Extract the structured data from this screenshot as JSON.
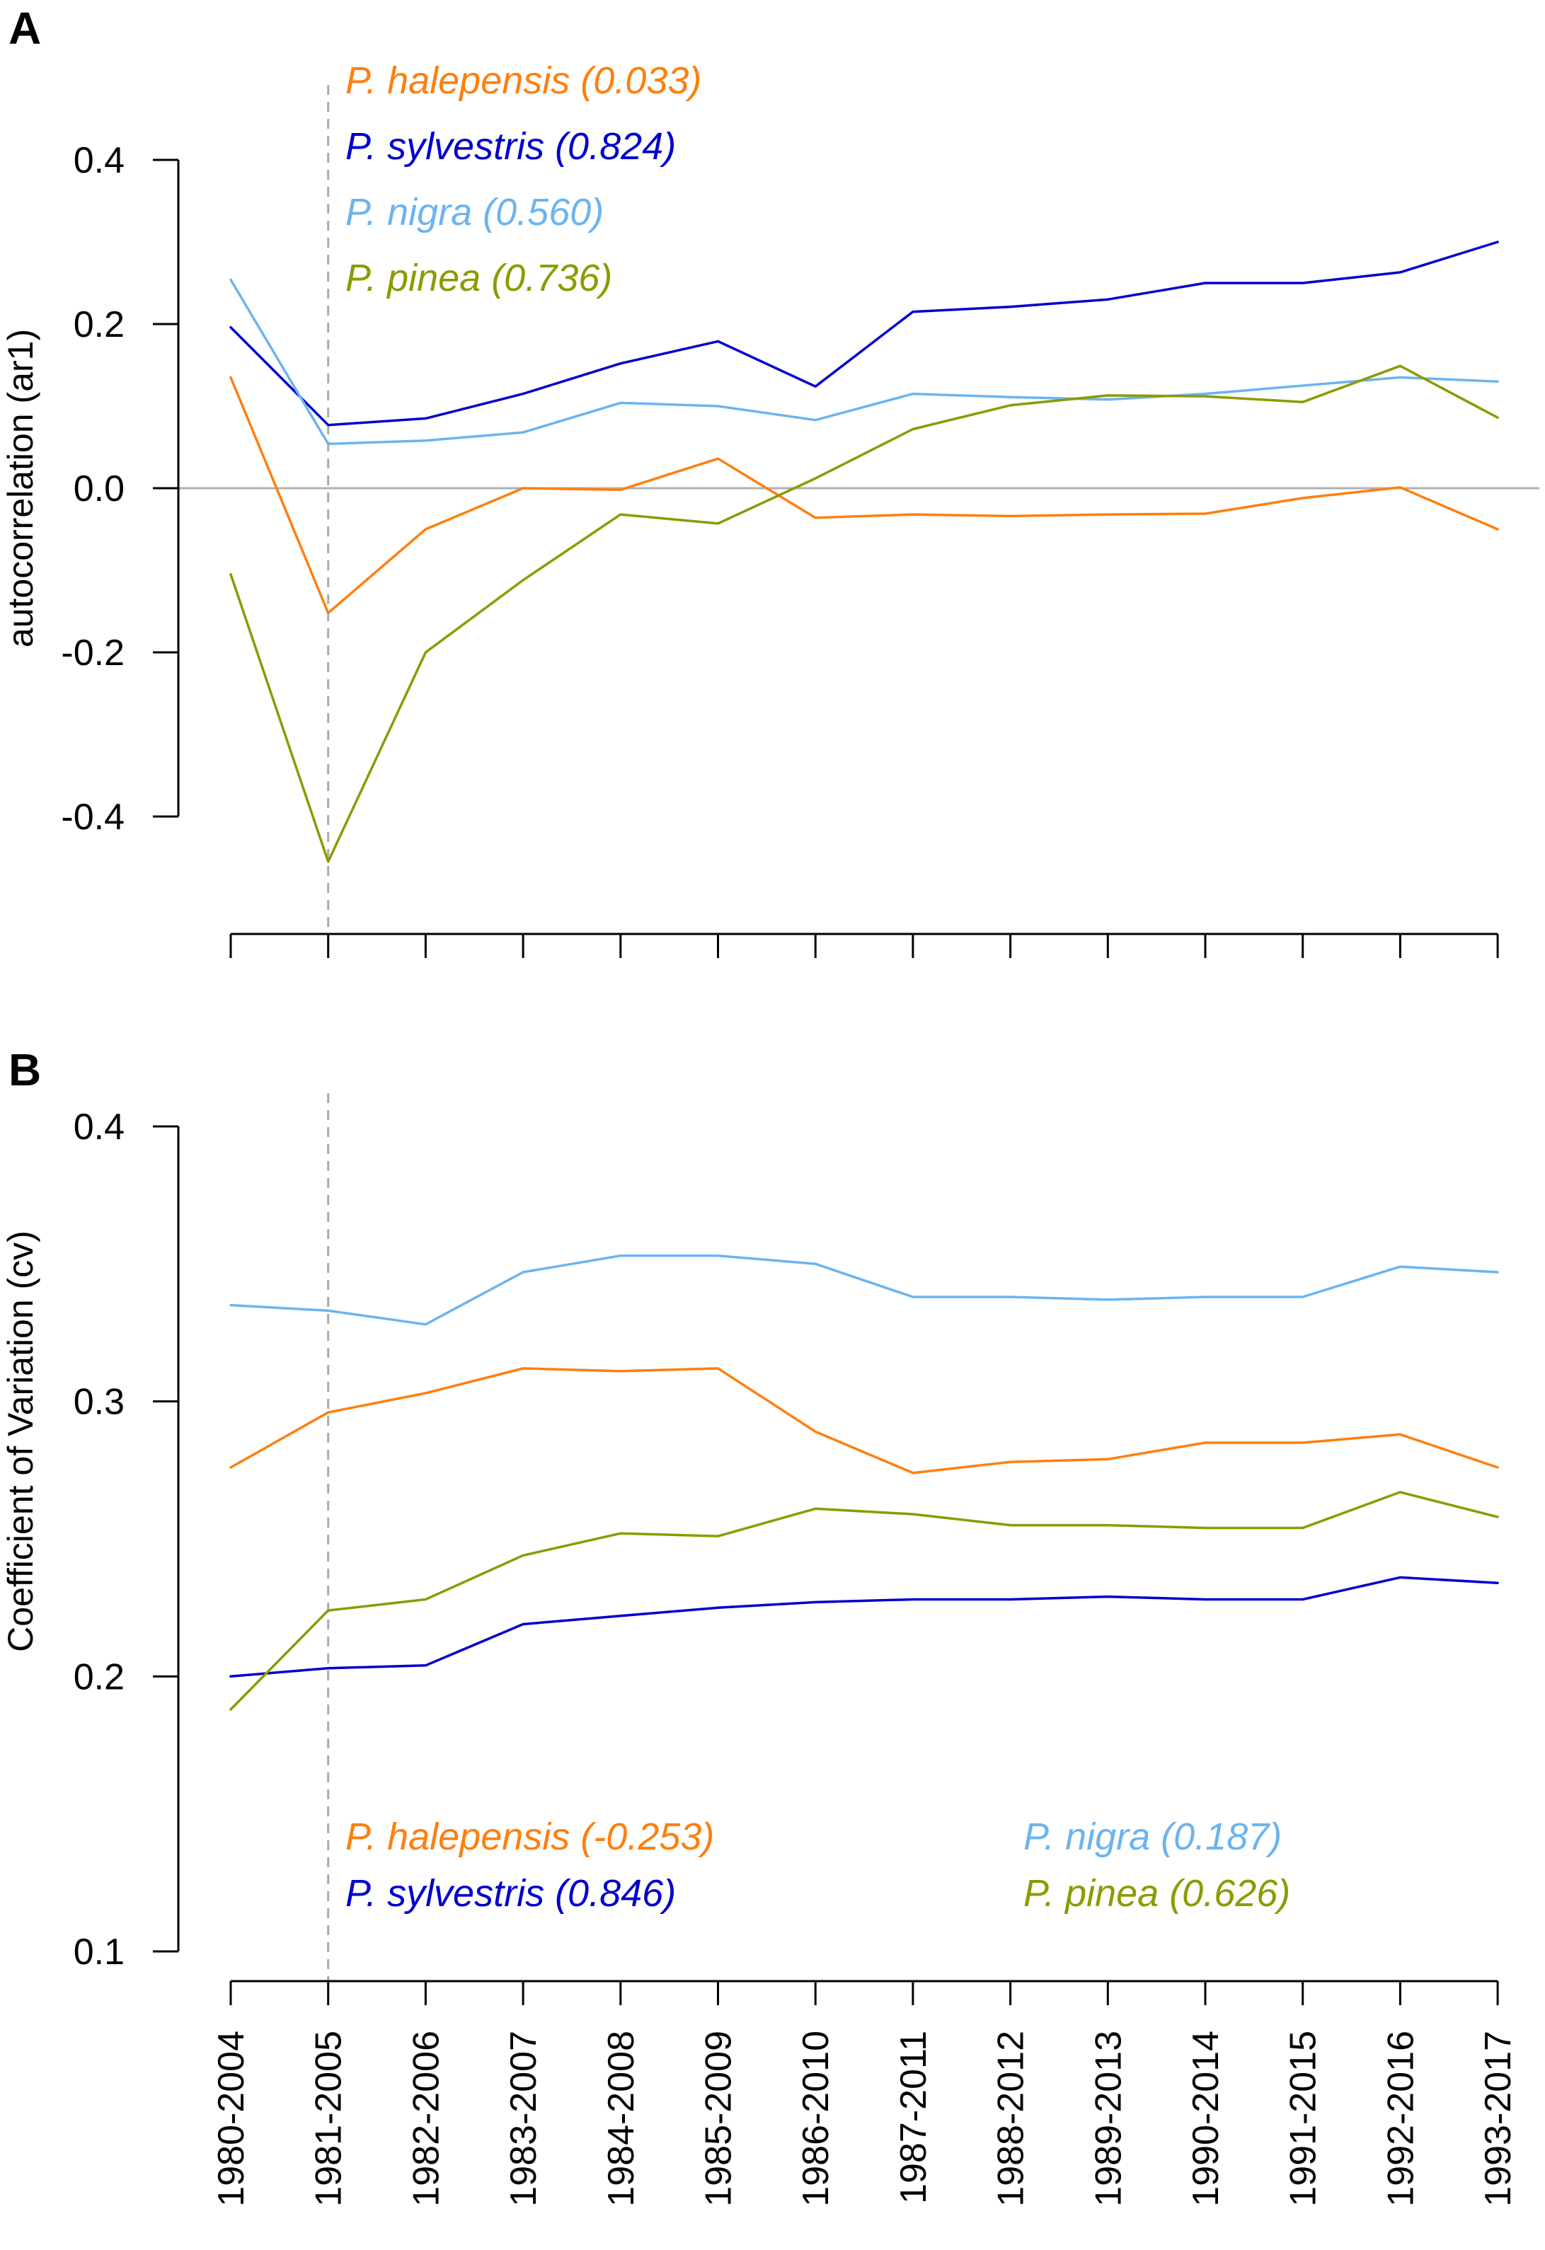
{
  "chart_data": [
    {
      "type": "line",
      "panel_label": "A",
      "ylabel": "autocorrelation (ar1)",
      "ylim": [
        -0.4,
        0.4
      ],
      "yticks": [
        "0.4",
        "0.2",
        "0.0",
        "-0.2",
        "-0.4"
      ],
      "ytick_values": [
        0.4,
        0.2,
        0.0,
        -0.2,
        -0.4
      ],
      "hline": 0.0,
      "vline_category": "1981-2005",
      "legend_position": "top-left",
      "series": [
        {
          "name": "halepensis",
          "label": "P. halepensis (0.033)",
          "color": "#ff7f0e",
          "values": [
            0.135,
            -0.152,
            -0.05,
            0.0,
            -0.002,
            0.036,
            -0.036,
            -0.032,
            -0.034,
            -0.032,
            -0.031,
            -0.012,
            0.001,
            -0.05
          ]
        },
        {
          "name": "sylvestris",
          "label": "P. sylvestris (0.824)",
          "color": "#0000cd",
          "values": [
            0.196,
            0.077,
            0.085,
            0.115,
            0.152,
            0.179,
            0.124,
            0.215,
            0.221,
            0.23,
            0.25,
            0.25,
            0.263,
            0.3
          ]
        },
        {
          "name": "nigra",
          "label": "P. nigra (0.560)",
          "color": "#6cb4ee",
          "values": [
            0.254,
            0.054,
            0.058,
            0.068,
            0.104,
            0.1,
            0.083,
            0.115,
            0.111,
            0.108,
            0.115,
            0.125,
            0.135,
            0.13
          ]
        },
        {
          "name": "pinea",
          "label": "P. pinea (0.736)",
          "color": "#8b9b00",
          "values": [
            -0.105,
            -0.455,
            -0.2,
            -0.112,
            -0.032,
            -0.043,
            0.012,
            0.072,
            0.101,
            0.113,
            0.112,
            0.105,
            0.149,
            0.086
          ]
        }
      ]
    },
    {
      "type": "line",
      "panel_label": "B",
      "ylabel": "Coefficient of Variation (cv)",
      "ylim": [
        0.1,
        0.4
      ],
      "yticks": [
        "0.4",
        "0.3",
        "0.2",
        "0.1"
      ],
      "ytick_values": [
        0.4,
        0.3,
        0.2,
        0.1
      ],
      "vline_category": "1981-2005",
      "legend_position": "bottom",
      "series": [
        {
          "name": "halepensis",
          "label": "P. halepensis (-0.253)",
          "color": "#ff7f0e",
          "values": [
            0.276,
            0.296,
            0.303,
            0.312,
            0.311,
            0.312,
            0.289,
            0.274,
            0.278,
            0.279,
            0.285,
            0.285,
            0.288,
            0.276
          ]
        },
        {
          "name": "sylvestris",
          "label": "P. sylvestris (0.846)",
          "color": "#0000cd",
          "values": [
            0.2,
            0.203,
            0.204,
            0.219,
            0.222,
            0.225,
            0.227,
            0.228,
            0.228,
            0.229,
            0.228,
            0.228,
            0.236,
            0.234
          ]
        },
        {
          "name": "nigra",
          "label": "P. nigra (0.187)",
          "color": "#6cb4ee",
          "values": [
            0.335,
            0.333,
            0.328,
            0.347,
            0.353,
            0.353,
            0.35,
            0.338,
            0.338,
            0.337,
            0.338,
            0.338,
            0.349,
            0.347
          ]
        },
        {
          "name": "pinea",
          "label": "P. pinea (0.626)",
          "color": "#8b9b00",
          "values": [
            0.188,
            0.224,
            0.228,
            0.244,
            0.252,
            0.251,
            0.261,
            0.259,
            0.255,
            0.255,
            0.254,
            0.254,
            0.267,
            0.258
          ]
        }
      ]
    }
  ],
  "categories": [
    "1980-2004",
    "1981-2005",
    "1982-2006",
    "1983-2007",
    "1984-2008",
    "1985-2009",
    "1986-2010",
    "1987-2011",
    "1988-2012",
    "1989-2013",
    "1990-2014",
    "1991-2015",
    "1992-2016",
    "1993-2017"
  ],
  "colors": {
    "axis": "#000000",
    "guide": "#aaaaaa",
    "zero_line": "#b0b0b0"
  }
}
